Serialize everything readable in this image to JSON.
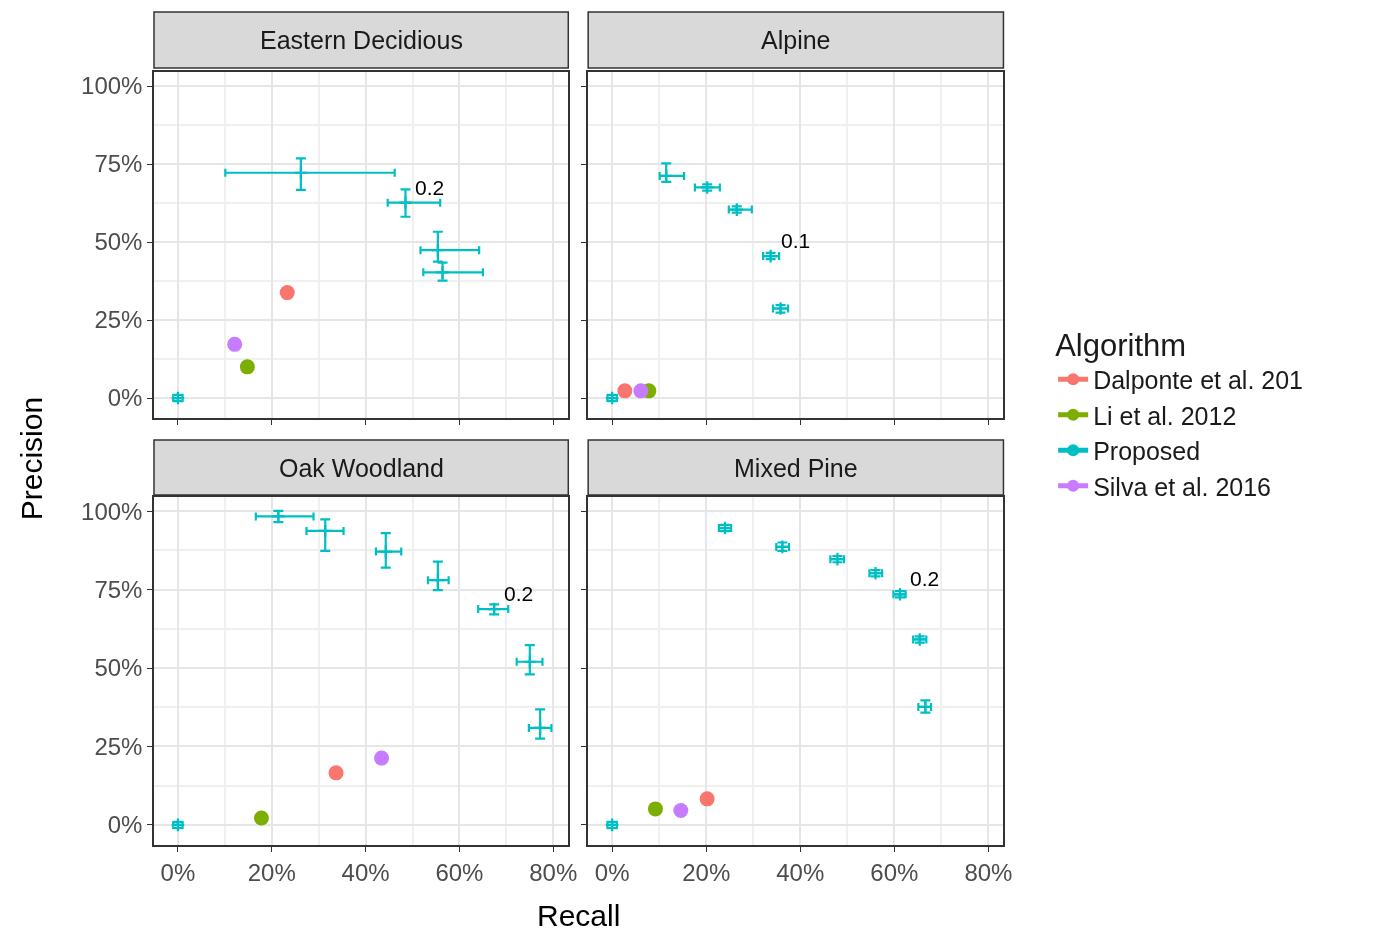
{
  "chart_data": [
    {
      "type": "scatter",
      "title": "Eastern Decidious",
      "ylabel": "Precision",
      "legend": "right",
      "legend_title": "Algorithm",
      "grid": true,
      "tick_labels": "y",
      "xlim": [
        -5.1,
        83.2
      ],
      "ylim": [
        -6.4,
        104.5
      ],
      "xticks": [
        0,
        20,
        40,
        60,
        80
      ],
      "yticks": [
        {
          "value": 0,
          "label": "0%"
        },
        {
          "value": 25,
          "label": "25%"
        },
        {
          "value": 50,
          "label": "50%"
        },
        {
          "value": 75,
          "label": "75%"
        },
        {
          "value": 100,
          "label": "100%"
        }
      ],
      "annotations": [
        {
          "text": "0.2",
          "x": 48.5,
          "y": 62.6
        }
      ],
      "series": [
        {
          "name": "Dalponte et al. 201",
          "color": "#f8766d",
          "marker": "circle",
          "x": [
            23.3
          ],
          "values": [
            33.8
          ]
        },
        {
          "name": "Li et al. 2012",
          "color": "#7cae00",
          "marker": "circle",
          "x": [
            14.8
          ],
          "values": [
            10.0
          ]
        },
        {
          "name": "Proposed",
          "color": "#00bfc4",
          "marker": "cross",
          "x": [
            0,
            26.2,
            48.5,
            55.4,
            56.4
          ],
          "values": [
            0,
            72.2,
            62.6,
            47.4,
            40.3
          ],
          "errors": [
            1,
            [
              66.7,
              76.8
            ],
            [
              58.1,
              66.9
            ],
            [
              43.7,
              53.3
            ],
            [
              37.6,
              43.4
            ]
          ],
          "xerrors": [
            1,
            [
              10.1,
              46.2
            ],
            [
              44.7,
              55.9
            ],
            [
              51.7,
              64.2
            ],
            [
              52.3,
              65.0
            ]
          ]
        },
        {
          "name": "Silva et al. 2016",
          "color": "#c77cff",
          "marker": "circle",
          "x": [
            12.1
          ],
          "values": [
            17.2
          ]
        }
      ]
    },
    {
      "type": "scatter",
      "title": "Alpine",
      "grid": true,
      "tick_labels": false,
      "xlim": [
        -5.1,
        83.2
      ],
      "ylim": [
        -6.4,
        104.5
      ],
      "xticks": [
        0,
        20,
        40,
        60,
        80
      ],
      "yticks": [
        0,
        25,
        50,
        75,
        100
      ],
      "annotations": [
        {
          "text": "0.1",
          "x": 33.7,
          "y": 45.5
        }
      ],
      "series": [
        {
          "color": "#f8766d",
          "marker": "circle",
          "x": [
            2.7
          ],
          "values": [
            2.3
          ]
        },
        {
          "color": "#7cae00",
          "marker": "circle",
          "x": [
            7.8
          ],
          "values": [
            2.3
          ]
        },
        {
          "color": "#00bfc4",
          "marker": "cross",
          "x": [
            0,
            11.5,
            20.2,
            26.5,
            33.7,
            35.8
          ],
          "values": [
            0,
            71.2,
            67.5,
            60.4,
            45.5,
            28.7
          ],
          "errors": [
            1,
            [
              69.3,
              75.2
            ],
            1,
            1,
            1,
            [
              27.4,
              29.8
            ]
          ],
          "xerrors": [
            1,
            [
              10.1,
              15.3
            ],
            [
              17.6,
              22.9
            ],
            [
              24.8,
              29.7
            ],
            [
              32.1,
              35.5
            ],
            [
              34.2,
              37.4
            ]
          ]
        },
        {
          "color": "#c77cff",
          "marker": "circle",
          "x": [
            6.1
          ],
          "values": [
            2.3
          ]
        }
      ]
    },
    {
      "type": "scatter",
      "title": "Oak Woodland",
      "xlabel": "Recall",
      "grid": true,
      "xlim": [
        -5.1,
        83.2
      ],
      "ylim": [
        -6.4,
        104.5
      ],
      "xticks": [
        {
          "value": 0,
          "label": "0%"
        },
        {
          "value": 20,
          "label": "20%"
        },
        {
          "value": 40,
          "label": "40%"
        },
        {
          "value": 60,
          "label": "60%"
        },
        {
          "value": 80,
          "label": "80%"
        }
      ],
      "yticks": [
        {
          "value": 0,
          "label": "0%"
        },
        {
          "value": 25,
          "label": "25%"
        },
        {
          "value": 50,
          "label": "50%"
        },
        {
          "value": 75,
          "label": "75%"
        },
        {
          "value": 100,
          "label": "100%"
        }
      ],
      "annotations": [
        {
          "text": "0.2",
          "x": 67.4,
          "y": 68.8
        }
      ],
      "series": [
        {
          "color": "#f8766d",
          "marker": "circle",
          "x": [
            33.7
          ],
          "values": [
            16.6
          ]
        },
        {
          "color": "#7cae00",
          "marker": "circle",
          "x": [
            17.8
          ],
          "values": [
            2.2
          ]
        },
        {
          "color": "#00bfc4",
          "marker": "cross",
          "x": [
            0,
            21.4,
            31.4,
            44.3,
            55.4,
            67.4,
            75.0,
            77.2
          ],
          "values": [
            0,
            98.3,
            93.7,
            87.1,
            78.0,
            68.8,
            52.0,
            30.9
          ],
          "errors": [
            1,
            [
              96.5,
              100.1
            ],
            [
              87.3,
              97.4
            ],
            [
              82.0,
              93.0
            ],
            [
              74.8,
              83.9
            ],
            [
              67.1,
              70.3
            ],
            [
              48.0,
              57.3
            ],
            [
              27.5,
              36.8
            ]
          ],
          "xerrors": [
            1,
            [
              16.6,
              28.9
            ],
            [
              27.4,
              35.3
            ],
            [
              42.2,
              47.6
            ],
            [
              53.3,
              57.7
            ],
            [
              64.0,
              70.4
            ],
            [
              72.2,
              77.7
            ],
            [
              74.8,
              79.6
            ]
          ]
        },
        {
          "color": "#c77cff",
          "marker": "circle",
          "x": [
            43.4
          ],
          "values": [
            21.3
          ]
        }
      ]
    },
    {
      "type": "scatter",
      "title": "Mixed Pine",
      "grid": true,
      "tick_labels": "x",
      "xlim": [
        -5.1,
        83.2
      ],
      "ylim": [
        -6.4,
        104.5
      ],
      "xticks": [
        {
          "value": 0,
          "label": "0%"
        },
        {
          "value": 20,
          "label": "20%"
        },
        {
          "value": 40,
          "label": "40%"
        },
        {
          "value": 60,
          "label": "60%"
        },
        {
          "value": 80,
          "label": "80%"
        }
      ],
      "yticks": [
        0,
        25,
        50,
        75,
        100
      ],
      "annotations": [
        {
          "text": "0.2",
          "x": 61.2,
          "y": 73.5
        }
      ],
      "series": [
        {
          "color": "#f8766d",
          "marker": "circle",
          "x": [
            20.2
          ],
          "values": [
            8.3
          ]
        },
        {
          "color": "#7cae00",
          "marker": "circle",
          "x": [
            9.2
          ],
          "values": [
            5.1
          ]
        },
        {
          "color": "#00bfc4",
          "marker": "cross",
          "x": [
            0,
            24.0,
            36.2,
            47.9,
            56.0,
            61.2,
            65.4,
            66.6
          ],
          "values": [
            0,
            94.6,
            88.6,
            84.7,
            80.2,
            73.5,
            59.1,
            37.6
          ],
          "errors": [
            1,
            1,
            [
              87.3,
              90.0
            ],
            1,
            1,
            1,
            1,
            [
              35.8,
              39.7
            ]
          ],
          "xerrors": [
            1,
            [
              22.7,
              25.3
            ],
            [
              34.9,
              37.6
            ],
            [
              46.4,
              49.3
            ],
            [
              54.7,
              57.4
            ],
            [
              59.8,
              62.4
            ],
            [
              64.0,
              66.8
            ],
            [
              65.1,
              67.8
            ]
          ]
        },
        {
          "color": "#c77cff",
          "marker": "circle",
          "x": [
            14.6
          ],
          "values": [
            4.6
          ]
        }
      ]
    }
  ]
}
